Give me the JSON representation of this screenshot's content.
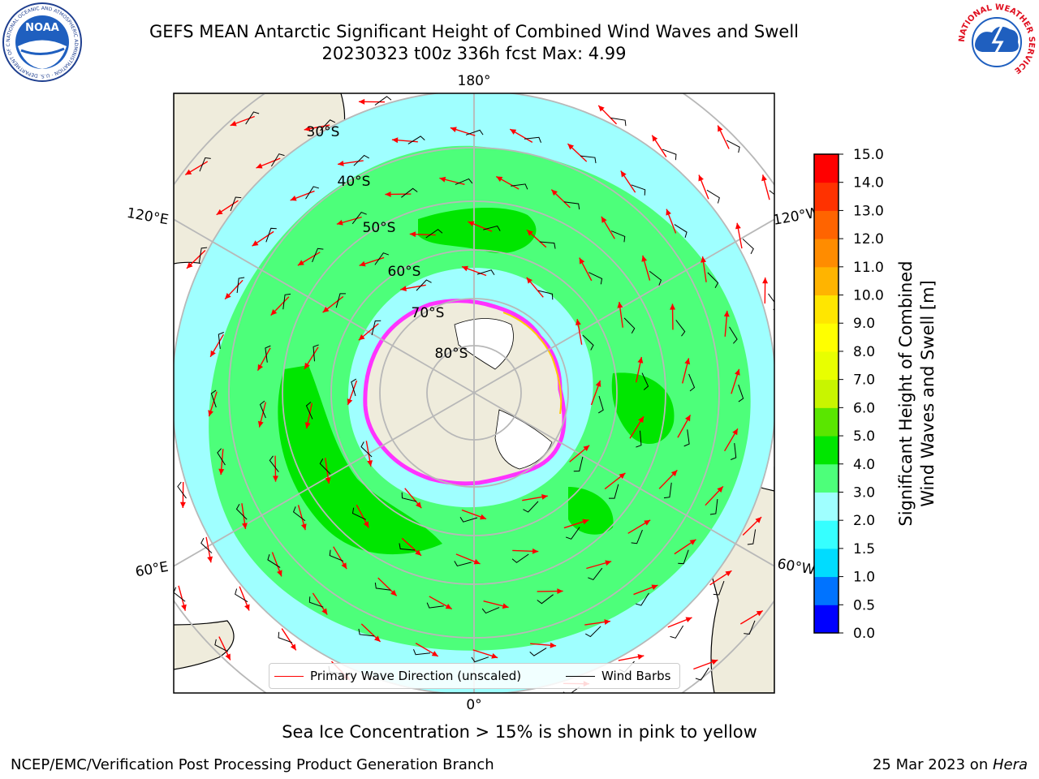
{
  "header": {
    "title_line1": "GEFS MEAN Antarctic Significant Height of Combined Wind Waves and Swell",
    "title_line2": "20230323 t00z 336h fcst   Max: 4.99"
  },
  "logos": {
    "left": "noaa-logo",
    "left_text": "NOAA",
    "left_ring_text": "NATIONAL OCEANIC AND ATMOSPHERIC ADMINISTRATION · U.S. DEPARTMENT OF COMMERCE",
    "right": "nws-logo",
    "right_ring_text": "NATIONAL WEATHER SERVICE"
  },
  "map": {
    "projection": "south-polar-stereographic",
    "lon_labels": {
      "top": "180°",
      "bottom": "0°",
      "upper_left": "120°E",
      "upper_right": "120°W",
      "lower_left": "60°E",
      "lower_right": "60°W"
    },
    "lat_labels": [
      "30°S",
      "40°S",
      "50°S",
      "60°S",
      "70°S",
      "80°S"
    ],
    "colors": {
      "ocean_low": "#9fffff",
      "ocean_mid": "#4dff7a",
      "ocean_high": "#00e600",
      "land": "#efecdc",
      "ice": "#ff33ff",
      "ice_edge": "#ffcc00",
      "arrow": "#ff0000",
      "barb": "#000000"
    }
  },
  "legend": {
    "primary_label": "Primary Wave Direction (unscaled)",
    "primary_color": "#ff0000",
    "barbs_label": "Wind Barbs",
    "barbs_color": "#000000"
  },
  "colorbar": {
    "label_line1": "Significant Height of Combined",
    "label_line2": "Wind Waves and Swell [m]",
    "ticks": [
      "0.0",
      "0.5",
      "1.0",
      "1.5",
      "2.0",
      "3.0",
      "4.0",
      "5.0",
      "6.0",
      "7.0",
      "8.0",
      "9.0",
      "10.0",
      "11.0",
      "12.0",
      "13.0",
      "14.0",
      "15.0"
    ],
    "colors": [
      "#0000ff",
      "#0073ff",
      "#00dcff",
      "#36ffff",
      "#9fffff",
      "#4dff7a",
      "#00e600",
      "#5ae600",
      "#c8f500",
      "#e8ff00",
      "#ffff00",
      "#ffe600",
      "#ffb400",
      "#ff8c00",
      "#ff6400",
      "#ff3200",
      "#ff0000"
    ]
  },
  "notes": {
    "ice": "Sea Ice Concentration > 15% is shown in pink to yellow",
    "footer_left": "NCEP/EMC/Verification Post Processing Product Generation Branch",
    "footer_date": "25 Mar 2023 on ",
    "footer_host": "Hera"
  }
}
